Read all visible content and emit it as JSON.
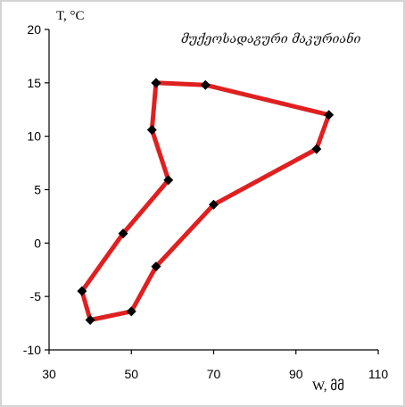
{
  "chart_data": {
    "type": "line",
    "title": "მუქეოსადაგური მაკურიანი",
    "xlabel": "W,  მმ",
    "ylabel": "T, °C",
    "xlim": [
      30,
      110
    ],
    "ylim": [
      -10,
      20
    ],
    "xticks": [
      30,
      50,
      70,
      90,
      110
    ],
    "yticks": [
      -10,
      -5,
      0,
      5,
      10,
      15,
      20
    ],
    "grid": false,
    "series": [
      {
        "color": "#e02020",
        "marker_color": "#000000",
        "x": [
          56,
          68,
          98,
          95,
          70,
          56,
          50,
          40,
          38,
          48,
          59,
          55,
          56
        ],
        "y": [
          15,
          14.8,
          12,
          8.8,
          3.6,
          -2.2,
          -6.4,
          -7.2,
          -4.5,
          0.9,
          5.9,
          10.6,
          15
        ]
      }
    ]
  }
}
